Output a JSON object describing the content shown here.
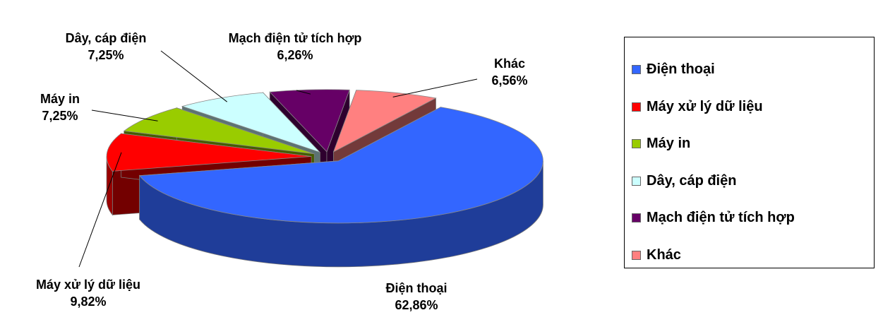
{
  "chart_data": {
    "type": "pie",
    "categories": [
      "Điện thoại",
      "Máy xử lý dữ liệu",
      "Máy in",
      "Dây, cáp điện",
      "Mạch điện tử tích hợp",
      "Khác"
    ],
    "values": [
      62.86,
      9.82,
      7.25,
      7.25,
      6.26,
      6.56
    ],
    "value_labels": [
      "62,86%",
      "9,82%",
      "7,25%",
      "7,25%",
      "6,26%",
      "6,56%"
    ],
    "colors": [
      "#3366ff",
      "#ff0000",
      "#99cc00",
      "#ccffff",
      "#660066",
      "#ff8080"
    ],
    "legend": "right"
  }
}
